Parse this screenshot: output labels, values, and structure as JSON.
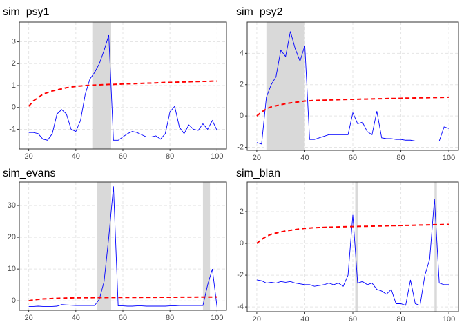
{
  "chart_data": [
    {
      "type": "line",
      "title": "sim_psy1",
      "x": [
        20,
        22,
        24,
        26,
        28,
        30,
        32,
        34,
        36,
        38,
        40,
        42,
        44,
        46,
        48,
        50,
        52,
        54,
        56,
        58,
        60,
        62,
        64,
        66,
        68,
        70,
        72,
        74,
        76,
        78,
        80,
        82,
        84,
        86,
        88,
        90,
        92,
        94,
        96,
        98,
        100
      ],
      "series": [
        {
          "color": "#0000ff",
          "linestyle": "solid",
          "values": [
            -1.15,
            -1.15,
            -1.2,
            -1.45,
            -1.5,
            -1.2,
            -0.3,
            -0.1,
            -0.3,
            -1.0,
            -1.1,
            -0.6,
            0.6,
            1.3,
            1.6,
            2.0,
            2.6,
            3.3,
            -1.5,
            -1.5,
            -1.35,
            -1.2,
            -1.1,
            -1.15,
            -1.25,
            -1.35,
            -1.35,
            -1.3,
            -1.45,
            -1.2,
            -0.2,
            0.05,
            -0.9,
            -1.2,
            -0.8,
            -1.0,
            -1.05,
            -0.75,
            -1.0,
            -0.6,
            -1.05
          ]
        },
        {
          "color": "#ff0000",
          "linestyle": "dashed",
          "values": [
            0.05,
            0.3,
            0.45,
            0.6,
            0.68,
            0.75,
            0.8,
            0.85,
            0.9,
            0.93,
            0.96,
            0.98,
            1.0,
            1.01,
            1.02,
            1.03,
            1.04,
            1.05,
            1.05,
            1.06,
            1.07,
            1.08,
            1.08,
            1.09,
            1.1,
            1.11,
            1.11,
            1.12,
            1.13,
            1.14,
            1.14,
            1.15,
            1.16,
            1.16,
            1.17,
            1.18,
            1.18,
            1.19,
            1.19,
            1.2,
            1.2
          ]
        }
      ],
      "shaded": [
        [
          47,
          55
        ]
      ],
      "shade_color": "#d9d9d9",
      "xlim": [
        16,
        104
      ],
      "xticks": [
        20,
        40,
        60,
        80,
        100
      ],
      "ylim": [
        -1.9,
        3.9
      ],
      "yticks": [
        -1,
        0,
        1,
        2,
        3
      ],
      "grid": true
    },
    {
      "type": "line",
      "title": "sim_psy2",
      "x": [
        20,
        22,
        24,
        26,
        28,
        30,
        32,
        34,
        36,
        38,
        40,
        42,
        44,
        46,
        48,
        50,
        52,
        54,
        56,
        58,
        60,
        62,
        64,
        66,
        68,
        70,
        72,
        74,
        76,
        78,
        80,
        82,
        84,
        86,
        88,
        90,
        92,
        94,
        96,
        98,
        100
      ],
      "series": [
        {
          "color": "#0000ff",
          "linestyle": "solid",
          "values": [
            -1.7,
            -1.8,
            1.2,
            2.0,
            2.5,
            4.2,
            3.8,
            5.4,
            4.3,
            3.5,
            4.5,
            -1.5,
            -1.5,
            -1.4,
            -1.3,
            -1.2,
            -1.2,
            -1.2,
            -1.2,
            -1.2,
            0.2,
            -0.5,
            -0.4,
            -1.0,
            -1.2,
            0.3,
            -1.4,
            -1.45,
            -1.45,
            -1.5,
            -1.5,
            -1.55,
            -1.55,
            -1.6,
            -1.6,
            -1.6,
            -1.6,
            -1.6,
            -1.6,
            -0.7,
            -0.8
          ]
        },
        {
          "color": "#ff0000",
          "linestyle": "dashed",
          "values": [
            0.0,
            0.25,
            0.45,
            0.58,
            0.65,
            0.72,
            0.78,
            0.83,
            0.87,
            0.91,
            0.95,
            0.97,
            0.99,
            1.0,
            1.01,
            1.02,
            1.03,
            1.04,
            1.05,
            1.06,
            1.06,
            1.07,
            1.08,
            1.08,
            1.09,
            1.1,
            1.1,
            1.11,
            1.12,
            1.12,
            1.13,
            1.14,
            1.14,
            1.15,
            1.16,
            1.16,
            1.17,
            1.18,
            1.18,
            1.19,
            1.2
          ]
        }
      ],
      "shaded": [
        [
          24,
          40
        ]
      ],
      "shade_color": "#d9d9d9",
      "xlim": [
        16,
        104
      ],
      "xticks": [
        20,
        40,
        60,
        80,
        100
      ],
      "ylim": [
        -2.2,
        6.0
      ],
      "yticks": [
        -2,
        0,
        2,
        4
      ],
      "grid": true
    },
    {
      "type": "line",
      "title": "sim_evans",
      "x": [
        20,
        22,
        24,
        26,
        28,
        30,
        32,
        34,
        36,
        38,
        40,
        42,
        44,
        46,
        48,
        50,
        52,
        54,
        56,
        58,
        60,
        62,
        64,
        66,
        68,
        70,
        72,
        74,
        76,
        78,
        80,
        82,
        84,
        86,
        88,
        90,
        92,
        94,
        96,
        98,
        100
      ],
      "series": [
        {
          "color": "#0000ff",
          "linestyle": "solid",
          "values": [
            -1.8,
            -1.8,
            -1.7,
            -1.8,
            -1.8,
            -1.8,
            -1.7,
            -1.2,
            -1.3,
            -1.4,
            -1.5,
            -1.5,
            -1.5,
            -1.5,
            -1.5,
            0.5,
            6,
            20,
            36,
            -1.6,
            -1.6,
            -1.7,
            -1.7,
            -1.6,
            -1.6,
            -1.7,
            -1.7,
            -1.7,
            -1.7,
            -1.7,
            -1.6,
            -1.6,
            -1.5,
            -1.5,
            -1.5,
            -1.5,
            -1.5,
            -1.5,
            5,
            10,
            -2
          ]
        },
        {
          "color": "#ff0000",
          "linestyle": "dashed",
          "values": [
            0.0,
            0.3,
            0.45,
            0.58,
            0.65,
            0.72,
            0.78,
            0.83,
            0.87,
            0.91,
            0.95,
            0.97,
            0.99,
            1.0,
            1.01,
            1.02,
            1.03,
            1.04,
            1.05,
            1.06,
            1.06,
            1.07,
            1.08,
            1.08,
            1.09,
            1.1,
            1.1,
            1.11,
            1.12,
            1.12,
            1.13,
            1.14,
            1.14,
            1.15,
            1.16,
            1.16,
            1.17,
            1.18,
            1.18,
            1.19,
            1.2
          ]
        }
      ],
      "shaded": [
        [
          49,
          55
        ],
        [
          94,
          97
        ]
      ],
      "shade_color": "#d9d9d9",
      "xlim": [
        16,
        104
      ],
      "xticks": [
        20,
        40,
        60,
        80,
        100
      ],
      "ylim": [
        -3,
        37.4
      ],
      "yticks": [
        0,
        10,
        20,
        30
      ],
      "grid": true
    },
    {
      "type": "line",
      "title": "sim_blan",
      "x": [
        20,
        22,
        24,
        26,
        28,
        30,
        32,
        34,
        36,
        38,
        40,
        42,
        44,
        46,
        48,
        50,
        52,
        54,
        56,
        58,
        60,
        62,
        64,
        66,
        68,
        70,
        72,
        74,
        76,
        78,
        80,
        82,
        84,
        86,
        88,
        90,
        92,
        94,
        96,
        98,
        100
      ],
      "series": [
        {
          "color": "#0000ff",
          "linestyle": "solid",
          "values": [
            -2.3,
            -2.35,
            -2.5,
            -2.45,
            -2.5,
            -2.4,
            -2.45,
            -2.4,
            -2.5,
            -2.55,
            -2.6,
            -2.6,
            -2.7,
            -2.65,
            -2.6,
            -2.5,
            -2.6,
            -2.5,
            -2.7,
            -2.0,
            1.8,
            -2.5,
            -2.4,
            -2.6,
            -2.5,
            -2.9,
            -3.0,
            -3.2,
            -2.9,
            -3.8,
            -3.8,
            -3.9,
            -2.3,
            -3.8,
            -3.9,
            -2.0,
            -1.0,
            2.8,
            -2.5,
            -2.6,
            -2.6
          ]
        },
        {
          "color": "#ff0000",
          "linestyle": "dashed",
          "values": [
            0.0,
            0.25,
            0.45,
            0.58,
            0.65,
            0.72,
            0.78,
            0.83,
            0.87,
            0.91,
            0.95,
            0.97,
            0.99,
            1.0,
            1.01,
            1.02,
            1.03,
            1.04,
            1.05,
            1.06,
            1.06,
            1.07,
            1.08,
            1.08,
            1.09,
            1.1,
            1.1,
            1.11,
            1.12,
            1.12,
            1.13,
            1.14,
            1.14,
            1.15,
            1.16,
            1.16,
            1.17,
            1.18,
            1.18,
            1.19,
            1.2
          ]
        }
      ],
      "shaded": [
        [
          61,
          62
        ],
        [
          94,
          95
        ]
      ],
      "shade_color": "#d9d9d9",
      "xlim": [
        16,
        104
      ],
      "xticks": [
        20,
        40,
        60,
        80,
        100
      ],
      "ylim": [
        -4.3,
        3.87
      ],
      "yticks": [
        -4,
        -2,
        0,
        2
      ],
      "grid": true
    }
  ]
}
